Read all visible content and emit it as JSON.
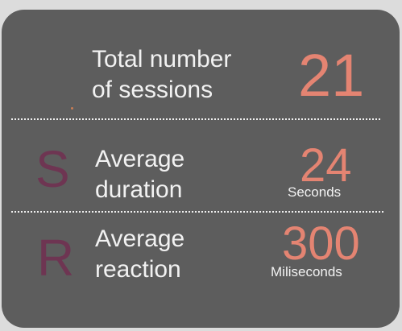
{
  "stats_card": {
    "sessions": {
      "label_line1": "Total number",
      "label_line2": "of sessions",
      "value": "21"
    },
    "duration": {
      "letter": "S",
      "label_line1": "Average",
      "label_line2": "duration",
      "value": "24",
      "unit": "Seconds"
    },
    "reaction": {
      "letter": "R",
      "label_line1": "Average",
      "label_line2": "reaction",
      "value": "300",
      "unit": "Miliseconds"
    }
  },
  "colors": {
    "card_background": "#5d5d5d",
    "page_background": "#dcdcdc",
    "value_accent": "#e48472",
    "letter_accent": "#6e3552",
    "text": "#f2f2f2"
  }
}
